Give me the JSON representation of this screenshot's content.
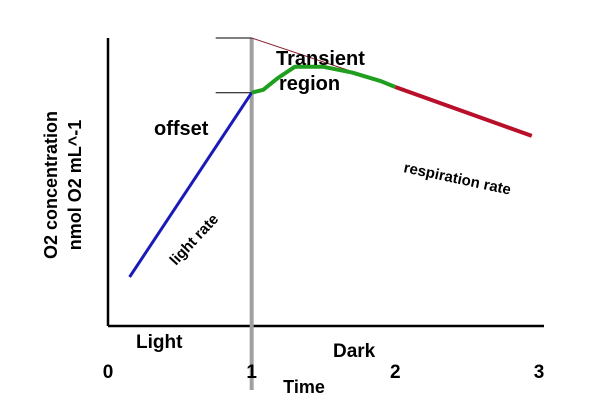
{
  "chart_data": {
    "type": "line",
    "xlabel": "Time",
    "ylabel_lines": [
      "O2 concentration",
      "nmol O2 mL^-1"
    ],
    "x_ticks": [
      "0",
      "1",
      "2",
      "3"
    ],
    "xlim": [
      0,
      3
    ],
    "ylim": [
      0,
      10
    ],
    "region_labels": {
      "light": "Light",
      "dark": "Dark"
    },
    "transient_lines": [
      "Transient",
      "region"
    ],
    "offset_label": "offset",
    "light_rate": {
      "label": "light rate",
      "color": "#1a1ab8",
      "points": [
        [
          0.15,
          1.7
        ],
        [
          1.0,
          8.1
        ]
      ]
    },
    "transient": {
      "color": "#1f9e1f",
      "points": [
        [
          1.0,
          8.1
        ],
        [
          1.08,
          8.2
        ],
        [
          1.18,
          8.6
        ],
        [
          1.3,
          9.0
        ],
        [
          1.5,
          9.0
        ],
        [
          1.7,
          8.8
        ],
        [
          1.9,
          8.5
        ],
        [
          2.0,
          8.3
        ]
      ]
    },
    "respiration_rate": {
      "label": "respiration rate",
      "color": "#b8102a",
      "points": [
        [
          2.0,
          8.3
        ],
        [
          2.95,
          6.6
        ]
      ]
    },
    "extrapolation": {
      "color": "#8b1a2a",
      "points": [
        [
          1.0,
          10.0
        ],
        [
          1.75,
          8.75
        ]
      ]
    },
    "offset_bracket": {
      "top": 10.0,
      "bottom": 8.1
    },
    "transition_time": 1,
    "colors": {
      "divider": "#a0a0a0",
      "axes": "#000000"
    }
  }
}
